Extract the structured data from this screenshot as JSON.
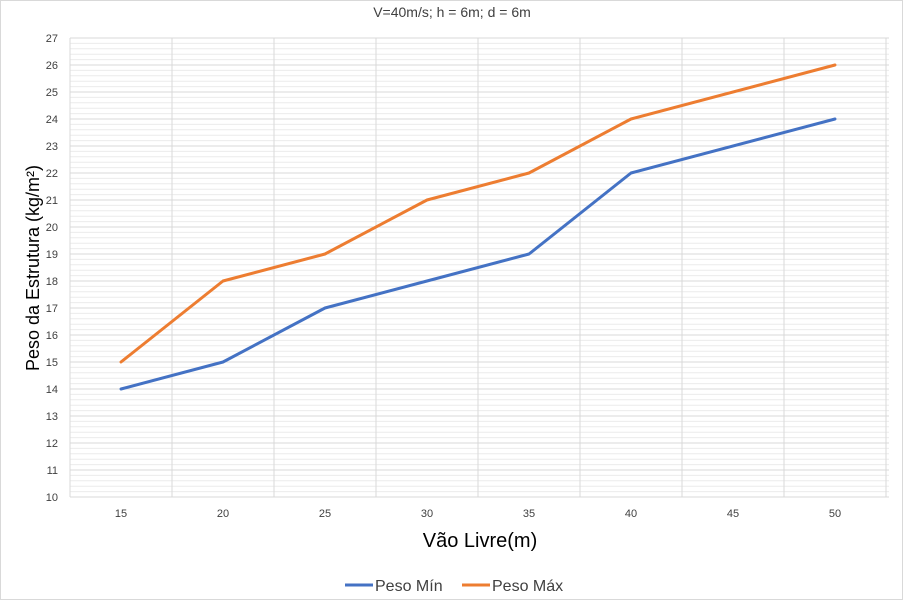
{
  "chart_data": {
    "type": "line",
    "title": "V=40m/s; h = 6m; d = 6m",
    "xlabel": "Vão Livre(m)",
    "ylabel": "Peso da Estrutura (kg/m²)",
    "x": [
      15,
      20,
      25,
      30,
      35,
      40,
      45,
      50
    ],
    "x_ticks": [
      "15",
      "20",
      "25",
      "30",
      "35",
      "40",
      "45",
      "50"
    ],
    "ylim": [
      10,
      27
    ],
    "y_ticks": [
      "10",
      "11",
      "12",
      "13",
      "14",
      "15",
      "16",
      "17",
      "18",
      "19",
      "20",
      "21",
      "22",
      "23",
      "24",
      "25",
      "26",
      "27"
    ],
    "grid": true,
    "legend_position": "bottom",
    "series": [
      {
        "name": "Peso Mín",
        "color": "#4472C4",
        "x": [
          15,
          20,
          25,
          30,
          35,
          40,
          50
        ],
        "values": [
          14,
          15,
          17,
          18,
          19,
          22,
          24
        ]
      },
      {
        "name": "Peso Máx",
        "color": "#ED7D31",
        "x": [
          15,
          20,
          25,
          30,
          35,
          40,
          50
        ],
        "values": [
          15,
          18,
          19,
          21,
          22,
          24,
          26
        ]
      }
    ]
  }
}
